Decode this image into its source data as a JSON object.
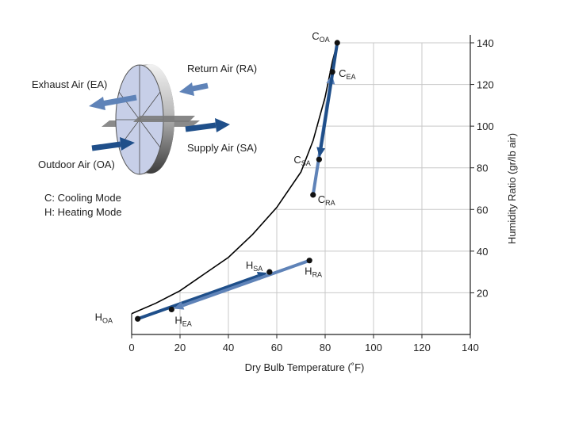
{
  "chart_data": {
    "type": "scatter",
    "title": "",
    "xlabel": "Dry Bulb Temperature (˚F)",
    "ylabel": "Humidity Ratio (gr/lb air)",
    "xlim": [
      0,
      140
    ],
    "ylim": [
      0,
      140
    ],
    "x_ticks": [
      "0",
      "20",
      "40",
      "60",
      "80",
      "100",
      "120",
      "140"
    ],
    "y_ticks": [
      "20",
      "40",
      "60",
      "80",
      "100",
      "120",
      "140"
    ],
    "y_axis_position": "right",
    "grid": true,
    "points": [
      {
        "id": "C_OA",
        "main": "C",
        "sub": "OA",
        "x": 85,
        "y": 140
      },
      {
        "id": "C_EA",
        "main": "C",
        "sub": "EA",
        "x": 83,
        "y": 126
      },
      {
        "id": "C_SA",
        "main": "C",
        "sub": "SA",
        "x": 77.5,
        "y": 84
      },
      {
        "id": "C_RA",
        "main": "C",
        "sub": "RA",
        "x": 75,
        "y": 67
      },
      {
        "id": "H_SA",
        "main": "H",
        "sub": "SA",
        "x": 57,
        "y": 30
      },
      {
        "id": "H_RA",
        "main": "H",
        "sub": "RA",
        "x": 73.5,
        "y": 35.5
      },
      {
        "id": "H_EA",
        "main": "H",
        "sub": "EA",
        "x": 16.5,
        "y": 12
      },
      {
        "id": "H_OA",
        "main": "H",
        "sub": "OA",
        "x": 2.5,
        "y": 7.5
      }
    ],
    "arrows": [
      {
        "from": "C_RA",
        "to": "C_EA",
        "color": "#5f83b8"
      },
      {
        "from": "C_OA",
        "to": "C_SA",
        "color": "#1f4f8a"
      },
      {
        "from": "H_OA",
        "to": "H_SA",
        "color": "#1f4f8a"
      },
      {
        "from": "H_RA",
        "to": "H_EA",
        "color": "#5f83b8"
      }
    ],
    "saturation_curve": [
      [
        0,
        10
      ],
      [
        10,
        15
      ],
      [
        20,
        21
      ],
      [
        30,
        29
      ],
      [
        40,
        37
      ],
      [
        50,
        48
      ],
      [
        60,
        61
      ],
      [
        70,
        78
      ],
      [
        75,
        93
      ],
      [
        80,
        114
      ],
      [
        83,
        131
      ],
      [
        85,
        140
      ]
    ]
  },
  "legend": {
    "exhaust": "Exhaust Air (EA)",
    "return": "Return Air (RA)",
    "supply": "Supply Air (SA)",
    "outdoor": "Outdoor Air (OA)",
    "mode_cooling": "C: Cooling Mode",
    "mode_heating": "H: Heating Mode"
  },
  "colors": {
    "dark_arrow": "#1f4f8a",
    "light_arrow": "#5f83b8",
    "wheel_face": "#c7cfe8",
    "grid": "#c8c8c8"
  }
}
